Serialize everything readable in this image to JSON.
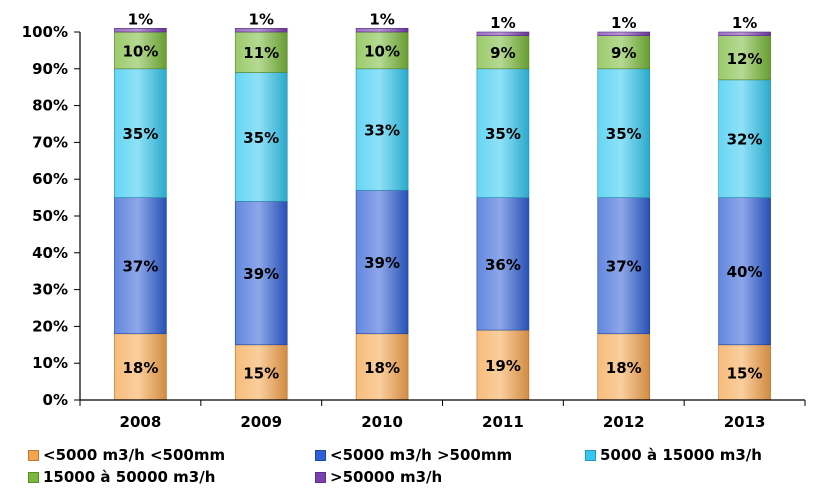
{
  "chart_data": {
    "type": "bar",
    "stacked": true,
    "categories": [
      "2008",
      "2009",
      "2010",
      "2011",
      "2012",
      "2013"
    ],
    "ylim": [
      0,
      100
    ],
    "yticks": [
      "0%",
      "10%",
      "20%",
      "30%",
      "40%",
      "50%",
      "60%",
      "70%",
      "80%",
      "90%",
      "100%"
    ],
    "grid": false,
    "legend_position": "bottom",
    "series": [
      {
        "name": "<5000 m3/h <500mm",
        "color": "#f6a54e",
        "values": [
          18,
          15,
          18,
          19,
          18,
          15
        ],
        "labels": [
          "18%",
          "15%",
          "18%",
          "19%",
          "18%",
          "15%"
        ]
      },
      {
        "name": "<5000 m3/h >500mm",
        "color": "#2f5fd6",
        "values": [
          37,
          39,
          39,
          36,
          37,
          40
        ],
        "labels": [
          "37%",
          "39%",
          "39%",
          "36%",
          "37%",
          "40%"
        ]
      },
      {
        "name": "5000 à 15000 m3/h",
        "color": "#33c8f0",
        "values": [
          35,
          35,
          33,
          35,
          35,
          32
        ],
        "labels": [
          "35%",
          "35%",
          "33%",
          "35%",
          "35%",
          "32%"
        ]
      },
      {
        "name": "15000 à 50000 m3/h",
        "color": "#79b93a",
        "values": [
          10,
          11,
          10,
          9,
          9,
          12
        ],
        "labels": [
          "10%",
          "11%",
          "10%",
          "9%",
          "9%",
          "12%"
        ]
      },
      {
        "name": ">50000 m3/h",
        "color": "#7a3fb0",
        "values": [
          1,
          1,
          1,
          1,
          1,
          1
        ],
        "labels": [
          "1%",
          "1%",
          "1%",
          "1%",
          "1%",
          "1%"
        ]
      }
    ]
  }
}
